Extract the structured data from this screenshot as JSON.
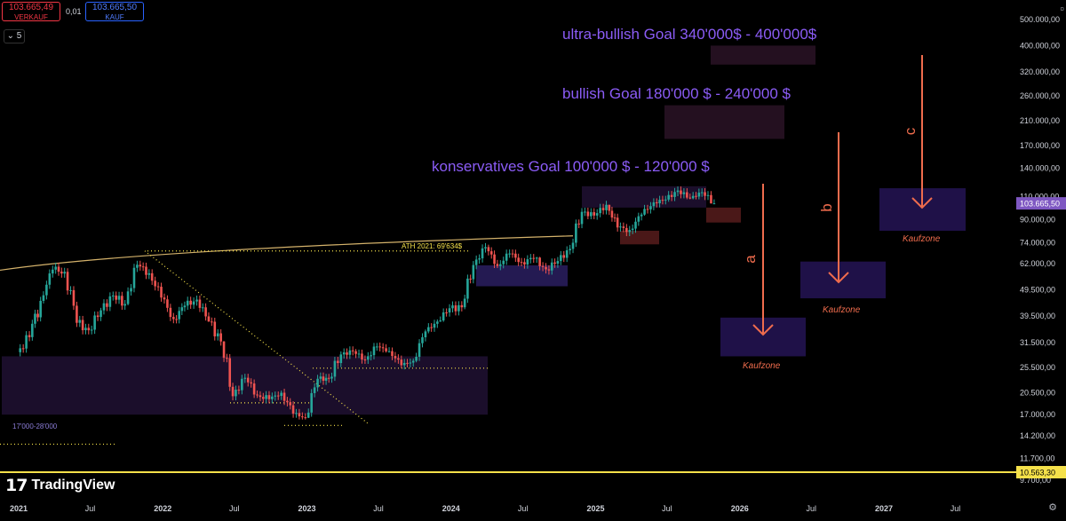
{
  "header": {
    "sell_price": "103.665,49",
    "sell_label": "VERKAUF",
    "spread": "0,01",
    "buy_price": "103.665,50",
    "buy_label": "KAUF",
    "interval": "5"
  },
  "branding": {
    "logo_mark": "17",
    "logo_text": "TradingView"
  },
  "colors": {
    "background": "#000000",
    "up": "#26a69a",
    "down": "#ef5350",
    "accent_purple": "#7e57c2",
    "zone_fill": "#1e1030",
    "arrow": "#ef6c4d",
    "ath_line": "#d4b26b",
    "dotted_yellow": "#f5e14a",
    "price_marker": "#7e57c2",
    "low_line": "#f5e14a"
  },
  "chart_data": {
    "type": "candlestick",
    "scale": "log",
    "series": [
      {
        "name": "BTC",
        "values": [
          [
            "2021-01",
            29000,
            41000,
            28000,
            33000
          ],
          [
            "2021-02",
            33000,
            58000,
            32000,
            45000
          ],
          [
            "2021-03",
            45000,
            61000,
            44000,
            58800
          ],
          [
            "2021-04",
            58800,
            64800,
            47000,
            57700
          ],
          [
            "2021-05",
            57700,
            59500,
            30000,
            37300
          ],
          [
            "2021-06",
            37300,
            41300,
            28800,
            35000
          ],
          [
            "2021-07",
            35000,
            42400,
            29300,
            41500
          ],
          [
            "2021-08",
            41500,
            50500,
            37500,
            47100
          ],
          [
            "2021-09",
            47100,
            52900,
            39600,
            43800
          ],
          [
            "2021-10",
            43800,
            66900,
            43300,
            61300
          ],
          [
            "2021-11",
            61300,
            69000,
            53300,
            57000
          ],
          [
            "2021-12",
            57000,
            59100,
            42000,
            46300
          ],
          [
            "2022-01",
            46300,
            47900,
            33000,
            38500
          ],
          [
            "2022-02",
            38500,
            45800,
            34300,
            43200
          ],
          [
            "2022-03",
            43200,
            48100,
            37200,
            45500
          ],
          [
            "2022-04",
            45500,
            47400,
            37600,
            37700
          ],
          [
            "2022-05",
            37700,
            40000,
            26700,
            31800
          ],
          [
            "2022-06",
            31800,
            31900,
            17600,
            19900
          ],
          [
            "2022-07",
            19900,
            24600,
            18800,
            23300
          ],
          [
            "2022-08",
            23300,
            25200,
            19600,
            20050
          ],
          [
            "2022-09",
            20050,
            22700,
            18200,
            19400
          ],
          [
            "2022-10",
            19400,
            20900,
            18200,
            20500
          ],
          [
            "2022-11",
            20500,
            21400,
            15500,
            17150
          ],
          [
            "2022-12",
            17150,
            18400,
            16300,
            16550
          ],
          [
            "2023-01",
            16550,
            23900,
            16500,
            23100
          ],
          [
            "2023-02",
            23100,
            25200,
            21400,
            23150
          ],
          [
            "2023-03",
            23150,
            29200,
            19600,
            28450
          ],
          [
            "2023-04",
            28450,
            31000,
            26900,
            29250
          ],
          [
            "2023-05",
            29250,
            29800,
            25800,
            27200
          ],
          [
            "2023-06",
            27200,
            31400,
            24800,
            30450
          ],
          [
            "2023-07",
            30450,
            31800,
            28900,
            29250
          ],
          [
            "2023-08",
            29250,
            30200,
            25300,
            25950
          ],
          [
            "2023-09",
            25950,
            27500,
            24900,
            26950
          ],
          [
            "2023-10",
            26950,
            35200,
            26600,
            34650
          ],
          [
            "2023-11",
            34650,
            38400,
            34100,
            37700
          ],
          [
            "2023-12",
            37700,
            44700,
            37600,
            42250
          ],
          [
            "2024-01",
            42250,
            48900,
            38500,
            42600
          ],
          [
            "2024-02",
            42600,
            64000,
            41900,
            61150
          ],
          [
            "2024-03",
            61150,
            73800,
            59000,
            71300
          ],
          [
            "2024-04",
            71300,
            72800,
            59600,
            60650
          ],
          [
            "2024-05",
            60650,
            71900,
            56500,
            67500
          ],
          [
            "2024-06",
            67500,
            71900,
            58400,
            62700
          ],
          [
            "2024-07",
            62700,
            70000,
            53500,
            64600
          ],
          [
            "2024-08",
            64600,
            65600,
            49000,
            58950
          ],
          [
            "2024-09",
            58950,
            66500,
            52500,
            63300
          ],
          [
            "2024-10",
            63300,
            73600,
            58900,
            70200
          ],
          [
            "2024-11",
            70200,
            99600,
            66800,
            96400
          ],
          [
            "2024-12",
            96400,
            108300,
            90500,
            93400
          ],
          [
            "2025-01",
            93400,
            109400,
            89200,
            102400
          ],
          [
            "2025-02",
            102400,
            102500,
            78200,
            84350
          ],
          [
            "2025-03",
            84350,
            95000,
            76600,
            82550
          ],
          [
            "2025-04",
            82550,
            95700,
            74500,
            94200
          ],
          [
            "2025-05",
            94200,
            111900,
            93300,
            104600
          ],
          [
            "2025-06",
            104600,
            110600,
            98200,
            107100
          ],
          [
            "2025-07",
            107100,
            123200,
            105100,
            115750
          ],
          [
            "2025-08",
            115750,
            124400,
            107400,
            108250
          ],
          [
            "2025-09",
            108250,
            117900,
            107300,
            114050
          ],
          [
            "2025-10",
            114050,
            126200,
            103500,
            103665
          ]
        ]
      }
    ],
    "y_ticks": [
      "500.000,00",
      "400.000,00",
      "320.000,00",
      "260.000,00",
      "210.000,00",
      "170.000,00",
      "140.000,00",
      "110.000,00",
      "90.000,00",
      "74.000,00",
      "62.000,00",
      "49.500,00",
      "39.500,00",
      "31.500,00",
      "25.500,00",
      "20.500,00",
      "17.000,00",
      "14.200,00",
      "11.700,00",
      "9.700,00"
    ],
    "x_ticks": [
      "2021",
      "Jul",
      "2022",
      "Jul",
      "2023",
      "Jul",
      "2024",
      "Jul",
      "2025",
      "Jul",
      "2026",
      "Jul",
      "2027",
      "Jul"
    ],
    "current_price_label": "103.665,50",
    "low_price_label": "10.563,30",
    "annotations": {
      "ultra_goal": "ultra-bullish Goal 340'000$ - 400'000$",
      "bullish_goal": "bullish Goal 180'000 $ - 240'000 $",
      "conservative_goal": "konservatives Goal 100'000 $ - 120'000 $",
      "ath_label": "ATH 2021: 69'634$",
      "range_label": "17'000-28'000",
      "kaufzone_label": "Kaufzone",
      "arrow_a": "a",
      "arrow_b": "b",
      "arrow_c": "c"
    },
    "zones": {
      "ultra_goal": [
        340000,
        400000
      ],
      "bullish_goal": [
        180000,
        240000
      ],
      "conservative_goal": [
        100000,
        120000
      ],
      "range_2021": [
        17000,
        28000
      ],
      "kaufzone_a": [
        28000,
        39000
      ],
      "kaufzone_b": [
        46000,
        63000
      ],
      "kaufzone_c": [
        82000,
        118000
      ]
    }
  }
}
